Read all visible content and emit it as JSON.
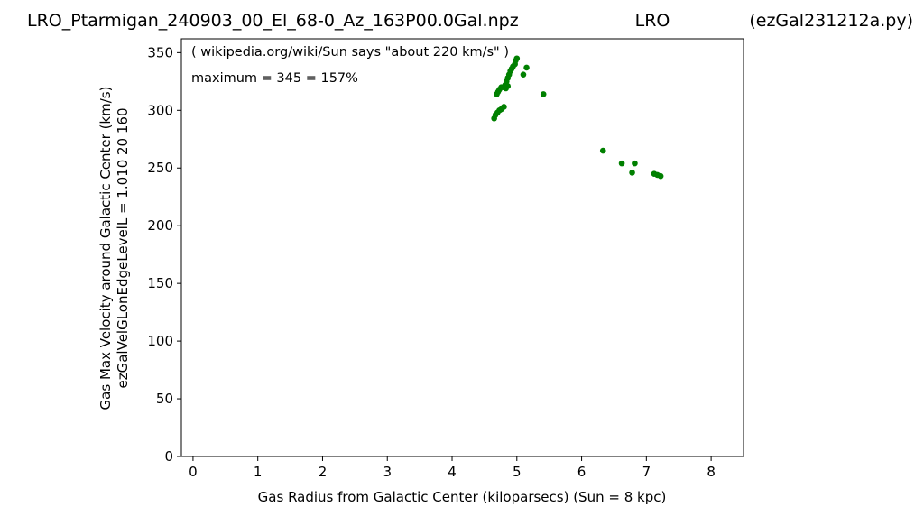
{
  "title": {
    "left": "LRO_Ptarmigan_240903_00_El_68-0_Az_163P00.0Gal.npz",
    "center": "LRO",
    "right": "(ezGal231212a.py)"
  },
  "chart_data": {
    "type": "scatter",
    "xlabel": "Gas Radius from Galactic Center (kiloparsecs)  (Sun = 8 kpc)",
    "ylabel_line1": "Gas Max Velocity around Galactic Center (km/s)",
    "ylabel_line2": "ezGalVelGLonEdgeLevelL = 1.010  20  160",
    "annotations": [
      "( wikipedia.org/wiki/Sun says \"about 220 km/s\" )",
      "maximum = 345 = 157%"
    ],
    "xlim": [
      -0.18,
      8.5
    ],
    "ylim": [
      0,
      362
    ],
    "xticks": [
      0,
      1,
      2,
      3,
      4,
      5,
      6,
      7,
      8
    ],
    "yticks": [
      0,
      50,
      100,
      150,
      200,
      250,
      300,
      350
    ],
    "grid": false,
    "marker_color": "#008000",
    "x": [
      4.65,
      4.67,
      4.7,
      4.73,
      4.76,
      4.8,
      4.69,
      4.71,
      4.73,
      4.76,
      4.79,
      4.82,
      4.84,
      4.86,
      4.88,
      4.9,
      4.92,
      4.94,
      4.83,
      4.86,
      4.97,
      4.98,
      5.0,
      5.1,
      5.15,
      5.41,
      6.33,
      6.62,
      6.78,
      6.82,
      7.12,
      7.17,
      7.22
    ],
    "y": [
      293,
      296,
      298,
      300,
      301,
      303,
      314,
      316,
      318,
      320,
      320,
      322,
      325,
      328,
      331,
      334,
      336,
      338,
      319,
      321,
      340,
      343,
      345,
      331,
      337,
      314,
      265,
      254,
      246,
      254,
      245,
      244,
      243
    ]
  }
}
